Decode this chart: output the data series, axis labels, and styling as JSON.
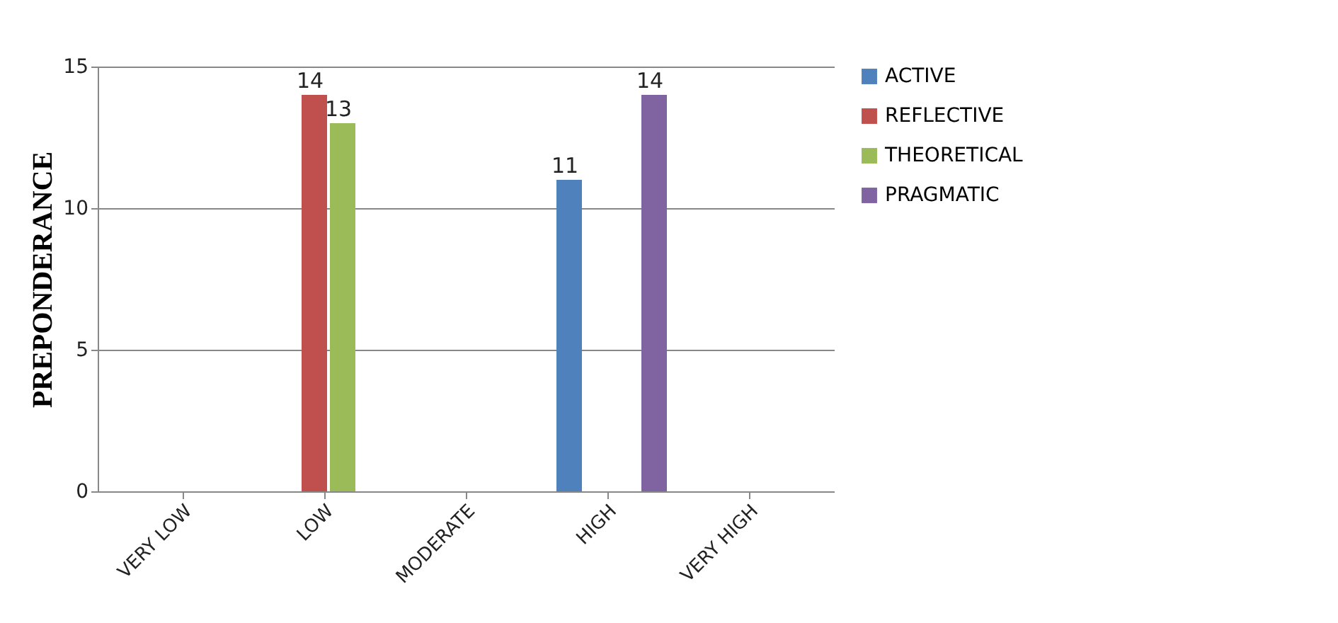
{
  "chart_data": {
    "type": "bar",
    "ylabel": "PREPONDERANCE",
    "categories": [
      "VERY LOW",
      "LOW",
      "MODERATE",
      "HIGH",
      "VERY HIGH"
    ],
    "series": [
      {
        "name": "ACTIVE",
        "color": "#4f81bd",
        "values": [
          null,
          null,
          null,
          11,
          null
        ]
      },
      {
        "name": "REFLECTIVE",
        "color": "#c0504d",
        "values": [
          null,
          14,
          null,
          null,
          null
        ]
      },
      {
        "name": "THEORETICAL",
        "color": "#9bbb59",
        "values": [
          null,
          13,
          null,
          null,
          null
        ]
      },
      {
        "name": "PRAGMATIC",
        "color": "#8064a2",
        "values": [
          null,
          null,
          null,
          14,
          null
        ]
      }
    ],
    "ylim": [
      0,
      15
    ],
    "yticks": [
      0,
      5,
      10,
      15
    ],
    "grid": "y",
    "legend": "right",
    "data_labels": true
  }
}
